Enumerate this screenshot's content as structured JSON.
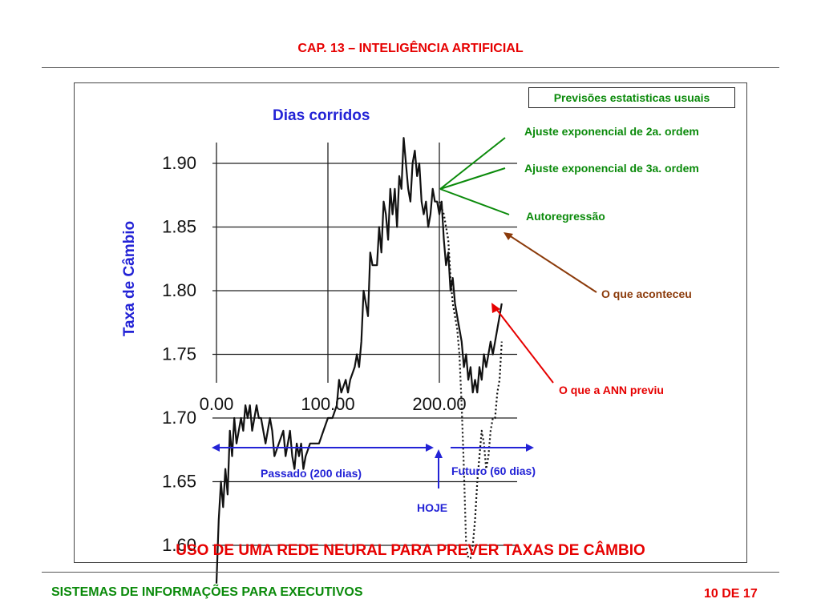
{
  "header": {
    "title": "CAP. 13 – INTELIGÊNCIA  ARTIFICIAL"
  },
  "footer": {
    "left": "SISTEMAS  DE  INFORMAÇÕES  PARA  EXECUTIVOS",
    "right": "10 DE 17"
  },
  "slide": {
    "main_title": "USO DE UMA REDE NEURAL PARA PREVER TAXAS DE CÂMBIO",
    "box_title": "Previsões estatisticas usuais",
    "callouts": {
      "exp2": "Ajuste exponencial de 2a. ordem",
      "exp3": "Ajuste exponencial de 3a. ordem",
      "autoreg": "Autoregressão",
      "actual": "O que aconteceu",
      "ann": "O que a ANN previu"
    },
    "timeline": {
      "past": "Passado (200 dias)",
      "future": "Futuro (60 dias)",
      "today": "HOJE"
    },
    "colors": {
      "red": "#e60000",
      "green": "#0a8a0a",
      "blue": "#2323d6",
      "brown": "#8b3a0a"
    }
  },
  "chart_data": {
    "type": "line",
    "title": "",
    "xlabel": "Dias corridos",
    "ylabel": "Taxa de Câmbio",
    "xlim": [
      0,
      260
    ],
    "ylim": [
      1.56,
      1.93
    ],
    "xticks": [
      0,
      100,
      200
    ],
    "xtick_labels": [
      "0.00",
      "100.00",
      "200.00"
    ],
    "yticks": [
      1.6,
      1.65,
      1.7,
      1.75,
      1.8,
      1.85,
      1.9
    ],
    "ytick_labels": [
      "1.60",
      "1.65",
      "1.70",
      "1.75",
      "1.80",
      "1.85",
      "1.90"
    ],
    "grid": true,
    "series": [
      {
        "name": "O que aconteceu",
        "style": "solid",
        "x": [
          0,
          2,
          4,
          6,
          8,
          10,
          12,
          14,
          16,
          18,
          20,
          22,
          24,
          26,
          28,
          30,
          32,
          34,
          36,
          38,
          40,
          44,
          48,
          50,
          52,
          56,
          60,
          62,
          64,
          66,
          68,
          70,
          72,
          74,
          76,
          78,
          80,
          84,
          88,
          92,
          96,
          100,
          104,
          108,
          110,
          112,
          116,
          118,
          120,
          124,
          126,
          128,
          130,
          132,
          134,
          136,
          138,
          140,
          144,
          146,
          148,
          150,
          152,
          154,
          156,
          158,
          160,
          162,
          164,
          166,
          168,
          170,
          172,
          174,
          176,
          178,
          180,
          182,
          184,
          186,
          188,
          190,
          192,
          194,
          196,
          198,
          200,
          202,
          204,
          206,
          208,
          210,
          212,
          214,
          216,
          218,
          220,
          222,
          224,
          226,
          228,
          230,
          232,
          234,
          236,
          238,
          240,
          242,
          244,
          246,
          248,
          250,
          252,
          254,
          256
        ],
        "y": [
          1.57,
          1.62,
          1.65,
          1.63,
          1.66,
          1.64,
          1.69,
          1.67,
          1.7,
          1.68,
          1.69,
          1.7,
          1.69,
          1.71,
          1.7,
          1.71,
          1.69,
          1.7,
          1.71,
          1.7,
          1.7,
          1.68,
          1.7,
          1.69,
          1.67,
          1.68,
          1.69,
          1.67,
          1.68,
          1.69,
          1.67,
          1.66,
          1.68,
          1.67,
          1.68,
          1.66,
          1.67,
          1.68,
          1.68,
          1.68,
          1.69,
          1.7,
          1.7,
          1.71,
          1.73,
          1.72,
          1.73,
          1.72,
          1.73,
          1.74,
          1.75,
          1.74,
          1.76,
          1.8,
          1.79,
          1.78,
          1.83,
          1.82,
          1.82,
          1.85,
          1.83,
          1.87,
          1.86,
          1.84,
          1.88,
          1.86,
          1.88,
          1.85,
          1.89,
          1.88,
          1.92,
          1.9,
          1.88,
          1.87,
          1.9,
          1.91,
          1.89,
          1.9,
          1.87,
          1.86,
          1.87,
          1.85,
          1.86,
          1.88,
          1.87,
          1.87,
          1.86,
          1.87,
          1.84,
          1.82,
          1.83,
          1.8,
          1.81,
          1.79,
          1.78,
          1.77,
          1.76,
          1.74,
          1.75,
          1.73,
          1.74,
          1.72,
          1.73,
          1.72,
          1.74,
          1.73,
          1.75,
          1.74,
          1.75,
          1.76,
          1.75,
          1.76,
          1.77,
          1.78,
          1.79
        ]
      },
      {
        "name": "O que a ANN previu",
        "style": "dotted",
        "x": [
          200,
          204,
          208,
          210,
          212,
          214,
          216,
          218,
          220,
          222,
          224,
          226,
          228,
          230,
          232,
          234,
          236,
          238,
          240,
          242,
          244,
          246,
          248,
          250,
          252,
          254,
          256
        ],
        "y": [
          1.87,
          1.86,
          1.84,
          1.81,
          1.79,
          1.78,
          1.77,
          1.75,
          1.71,
          1.66,
          1.6,
          1.59,
          1.59,
          1.6,
          1.62,
          1.65,
          1.67,
          1.69,
          1.68,
          1.66,
          1.67,
          1.69,
          1.7,
          1.7,
          1.72,
          1.73,
          1.76
        ]
      }
    ]
  }
}
